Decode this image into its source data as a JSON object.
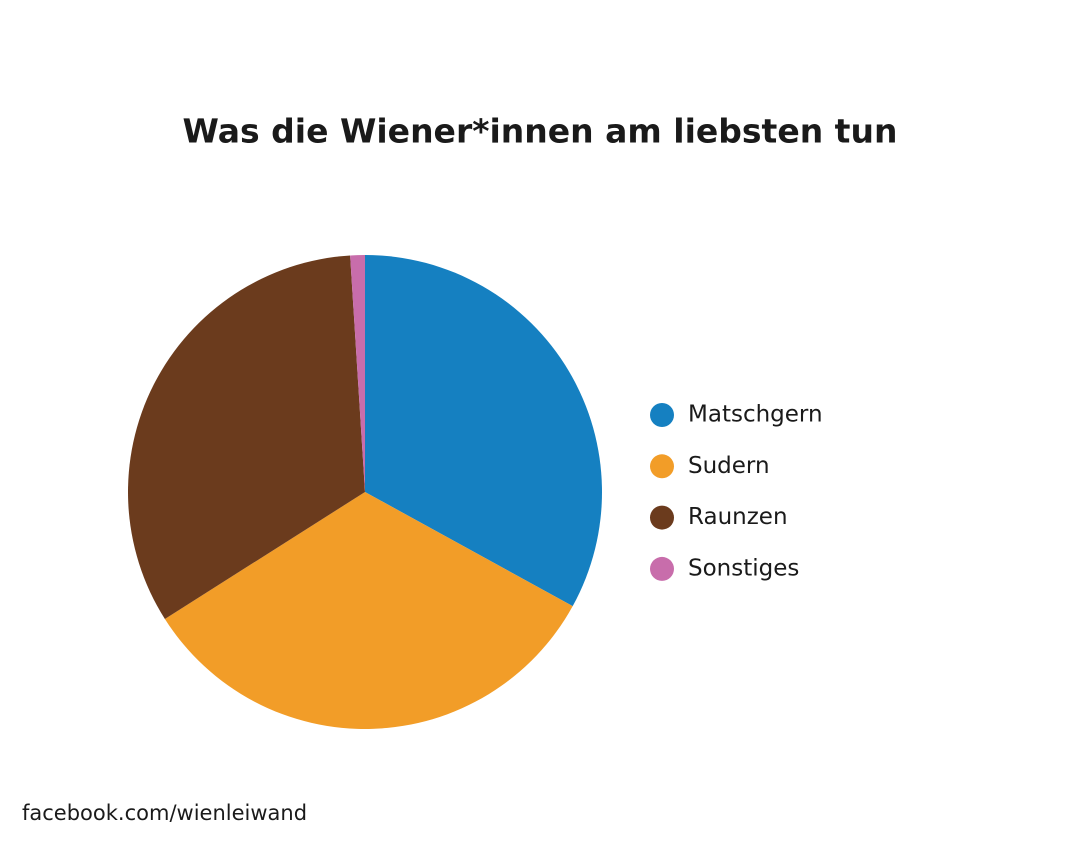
{
  "chart_data": {
    "type": "pie",
    "title": "Was die Wiener*innen am liebsten tun",
    "categories": [
      "Matschgern",
      "Sudern",
      "Raunzen",
      "Sonstiges"
    ],
    "values": [
      33,
      33,
      33,
      1
    ],
    "colors": [
      "#1580c1",
      "#f29d28",
      "#6b3b1d",
      "#c86dab"
    ],
    "legend": "right"
  },
  "footer": "facebook.com/wienleiwand"
}
